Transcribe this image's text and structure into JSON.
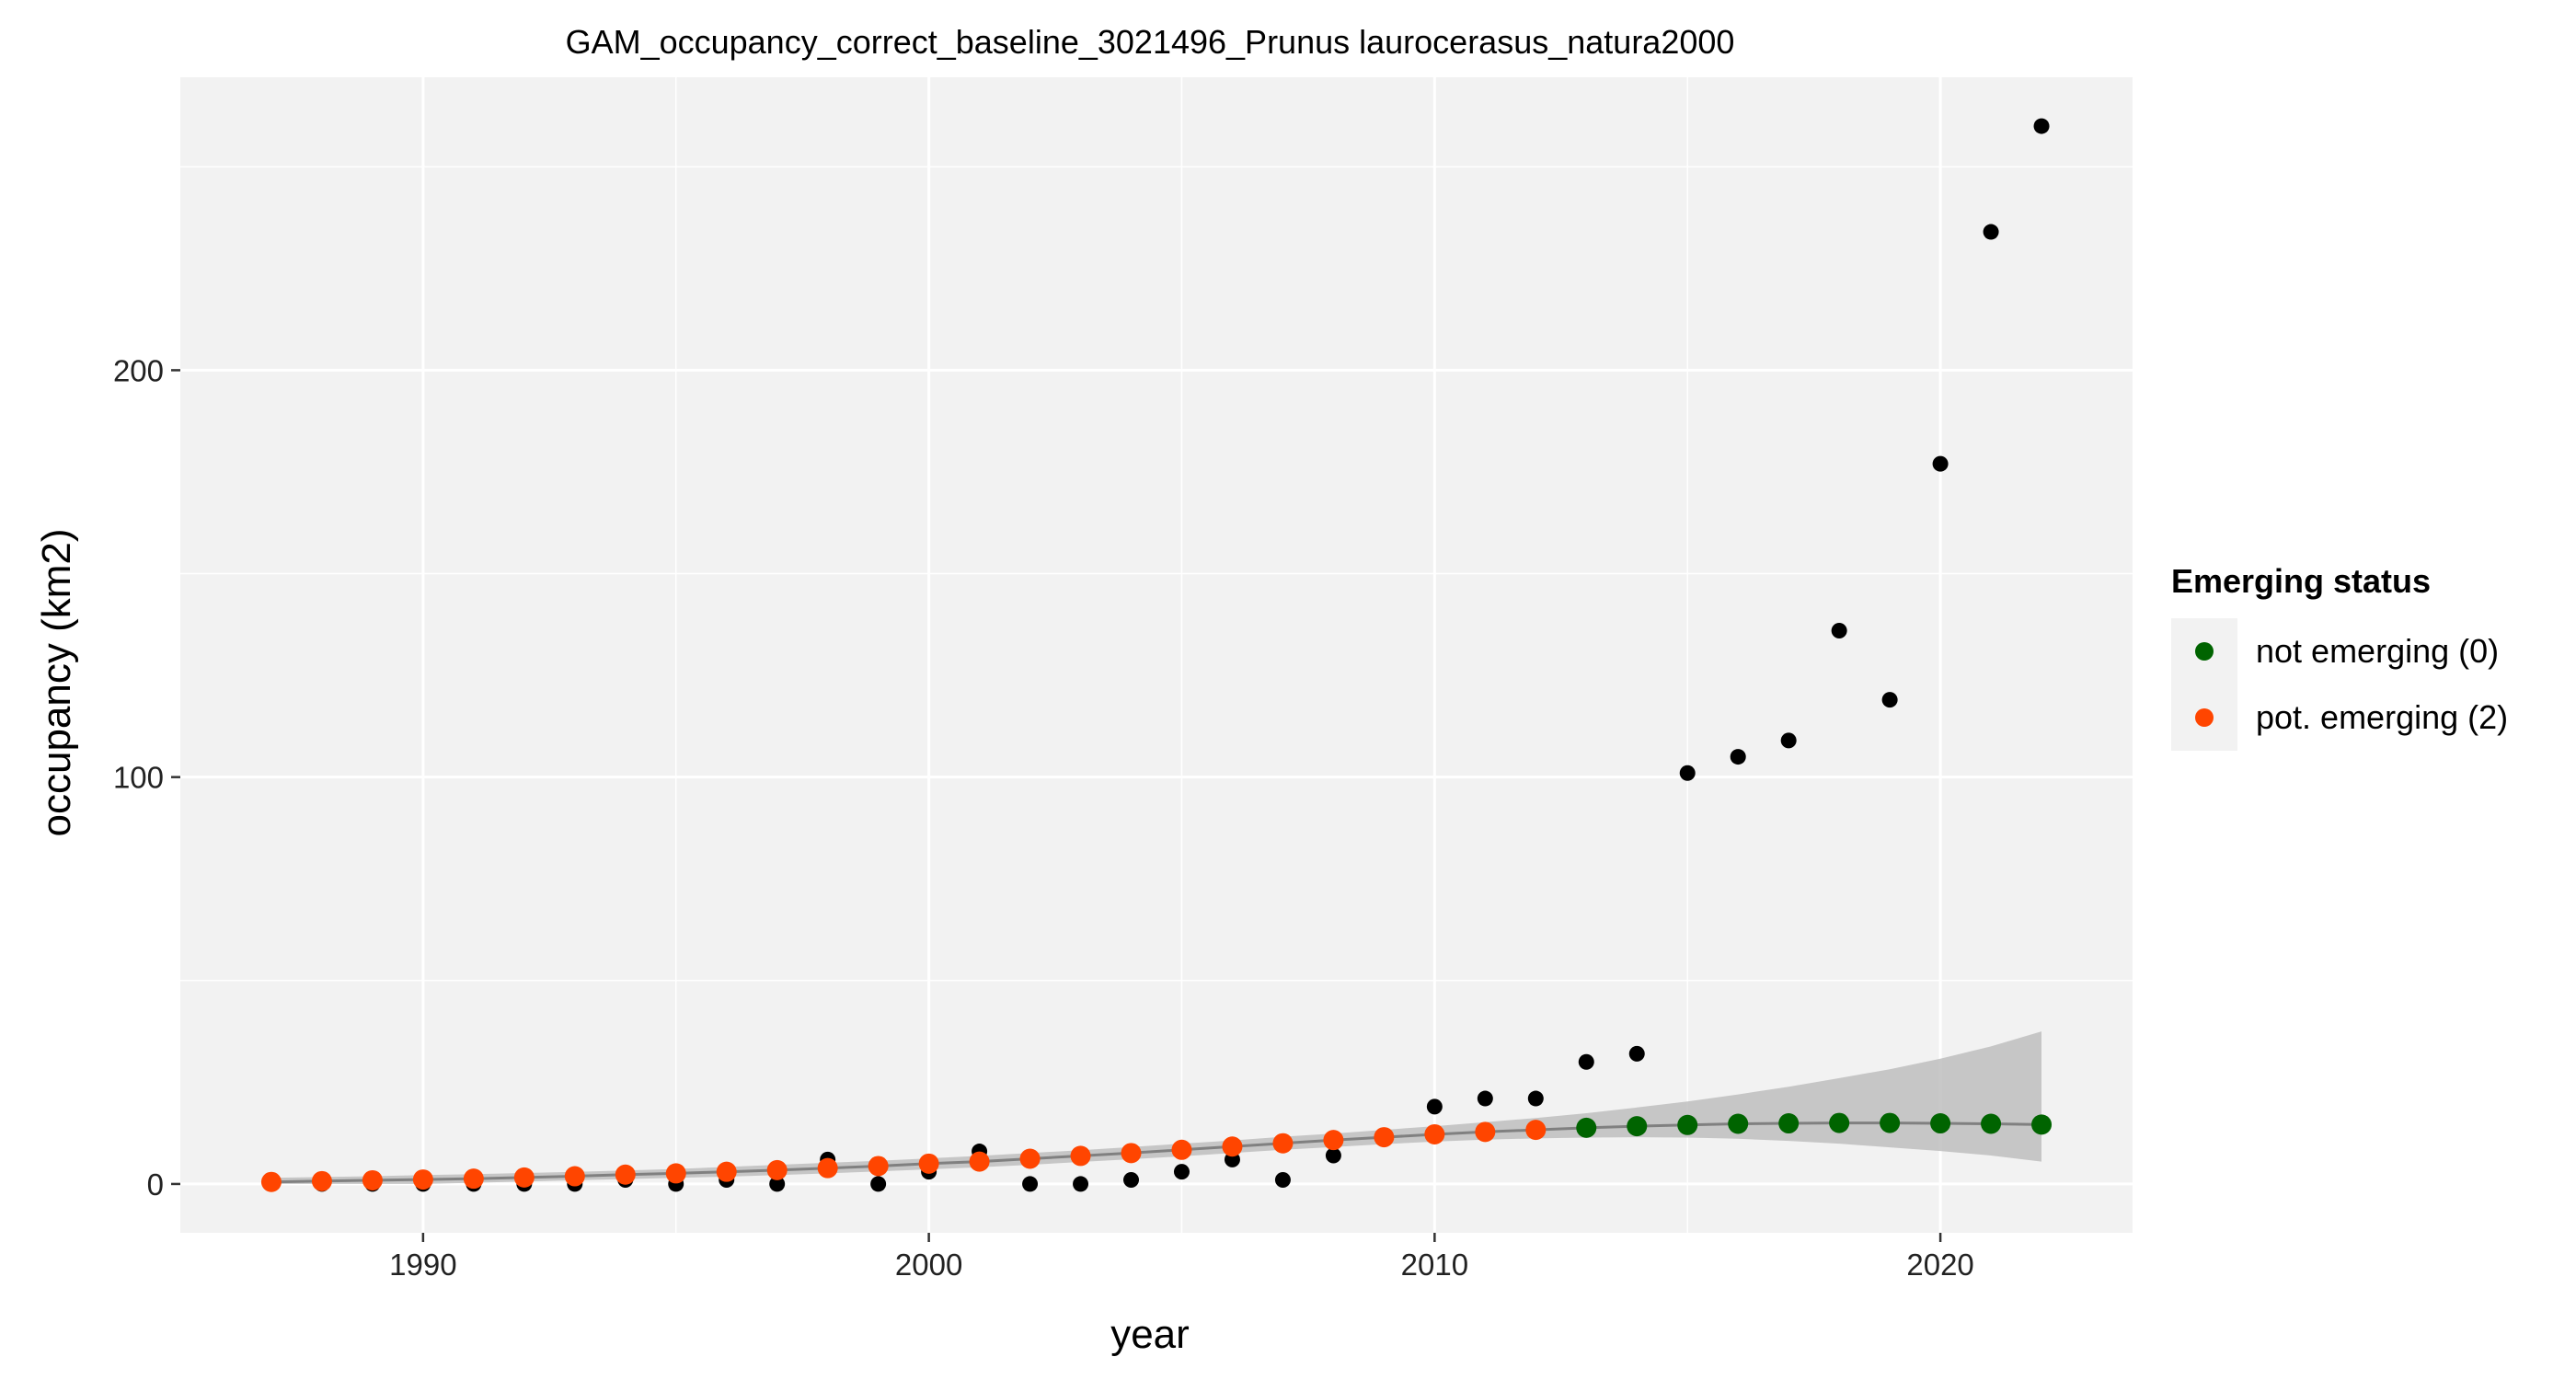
{
  "chart_data": {
    "type": "scatter",
    "title": "GAM_occupancy_correct_baseline_3021496_Prunus laurocerasus_natura2000",
    "xlabel": "year",
    "ylabel": "occupancy (km2)",
    "xlim": [
      1985.2,
      2023.8
    ],
    "ylim": [
      -12,
      272
    ],
    "x_ticks": [
      1990,
      2000,
      2010,
      2020
    ],
    "y_ticks": [
      0,
      100,
      200
    ],
    "grid": true,
    "legend": {
      "title": "Emerging status",
      "position": "right",
      "entries": [
        {
          "label": "not emerging (0)",
          "color": "#006400"
        },
        {
          "label": "pot. emerging (2)",
          "color": "#ff4500"
        }
      ]
    },
    "colors": {
      "panel": "#f2f2f2",
      "grid": "#ffffff",
      "observed": "#000000",
      "ribbon": "#bebebe",
      "fit_line": "#808080",
      "not_emerging": "#006400",
      "pot_emerging": "#ff4500"
    },
    "observed": {
      "x": [
        1987,
        1988,
        1989,
        1990,
        1991,
        1992,
        1993,
        1994,
        1995,
        1996,
        1997,
        1998,
        1999,
        2000,
        2001,
        2002,
        2003,
        2004,
        2005,
        2006,
        2007,
        2008,
        2009,
        2010,
        2011,
        2012,
        2013,
        2014,
        2015,
        2016,
        2017,
        2018,
        2019,
        2020,
        2021,
        2022
      ],
      "y": [
        0,
        0,
        0,
        0,
        0,
        0,
        0,
        1,
        0,
        1,
        0,
        6,
        0,
        3,
        8,
        0,
        0,
        1,
        3,
        6,
        1,
        7,
        11,
        19,
        21,
        21,
        30,
        32,
        101,
        105,
        109,
        136,
        119,
        177,
        234,
        260
      ]
    },
    "fitted": {
      "x": [
        1987,
        1988,
        1989,
        1990,
        1991,
        1992,
        1993,
        1994,
        1995,
        1996,
        1997,
        1998,
        1999,
        2000,
        2001,
        2002,
        2003,
        2004,
        2005,
        2006,
        2007,
        2008,
        2009,
        2010,
        2011,
        2012,
        2013,
        2014,
        2015,
        2016,
        2017,
        2018,
        2019,
        2020,
        2021,
        2022
      ],
      "y": [
        0.5,
        0.7,
        0.9,
        1.1,
        1.3,
        1.6,
        1.9,
        2.3,
        2.6,
        3.0,
        3.4,
        3.9,
        4.4,
        5.0,
        5.5,
        6.2,
        6.9,
        7.6,
        8.4,
        9.2,
        10.0,
        10.8,
        11.5,
        12.2,
        12.8,
        13.3,
        13.8,
        14.2,
        14.5,
        14.8,
        14.9,
        15.0,
        15.0,
        14.9,
        14.8,
        14.6
      ],
      "status": [
        2,
        2,
        2,
        2,
        2,
        2,
        2,
        2,
        2,
        2,
        2,
        2,
        2,
        2,
        2,
        2,
        2,
        2,
        2,
        2,
        2,
        2,
        2,
        2,
        2,
        2,
        0,
        0,
        0,
        0,
        0,
        0,
        0,
        0,
        0,
        0
      ],
      "lower": [
        0,
        0,
        0,
        0,
        0.3,
        0.6,
        0.9,
        1.2,
        1.5,
        1.8,
        2.2,
        2.6,
        3.1,
        3.6,
        4.1,
        4.7,
        5.4,
        6.1,
        6.8,
        7.6,
        8.4,
        9.1,
        9.8,
        10.4,
        10.9,
        11.2,
        11.4,
        11.5,
        11.4,
        11.1,
        10.6,
        9.9,
        9.0,
        8.1,
        7.0,
        5.5
      ],
      "upper": [
        1.5,
        1.7,
        1.9,
        2.2,
        2.4,
        2.7,
        3.0,
        3.3,
        3.7,
        4.2,
        4.7,
        5.2,
        5.7,
        6.3,
        6.9,
        7.6,
        8.3,
        9.1,
        9.9,
        10.7,
        11.6,
        12.4,
        13.3,
        14.2,
        15.2,
        16.2,
        17.4,
        18.8,
        20.3,
        22.0,
        23.9,
        26.0,
        28.2,
        30.8,
        33.8,
        37.5
      ]
    }
  }
}
